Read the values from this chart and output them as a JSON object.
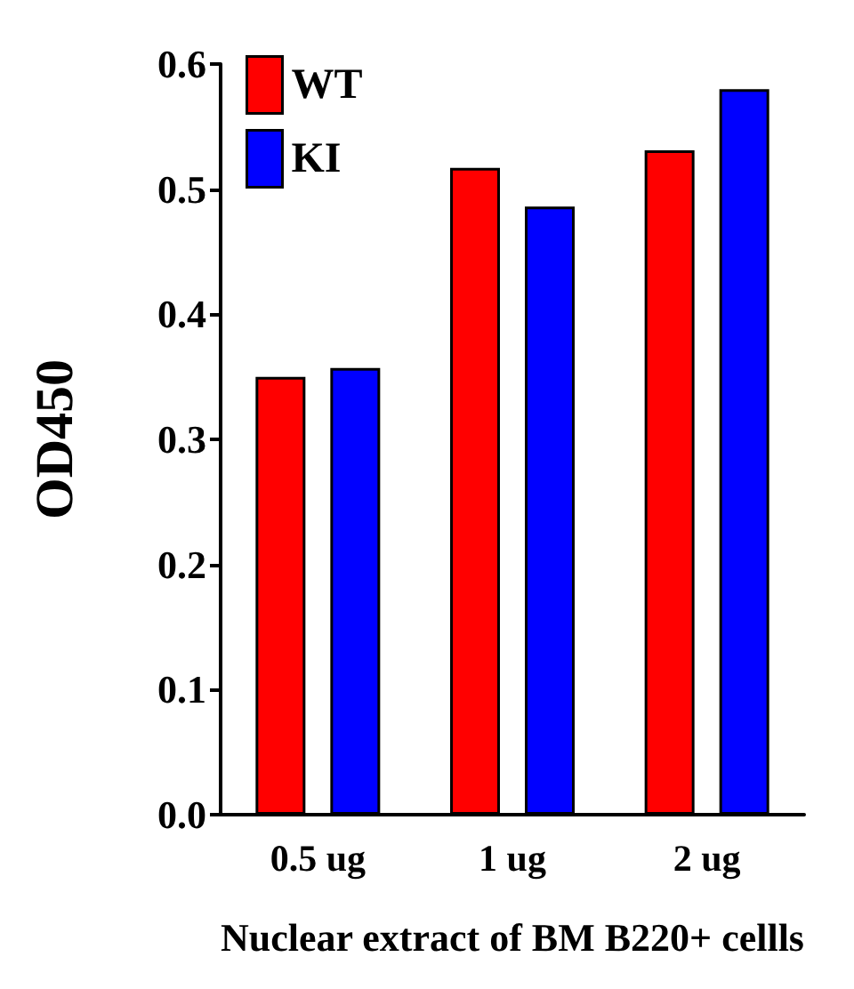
{
  "chart_data": {
    "type": "bar",
    "xlabel": "Nuclear extract of BM B220+ cellls",
    "ylabel": "OD450",
    "categories": [
      "0.5 ug",
      "1 ug",
      "2 ug"
    ],
    "series": [
      {
        "name": "WT",
        "color": "#ff0000",
        "values": [
          0.35,
          0.517,
          0.531
        ]
      },
      {
        "name": "KI",
        "color": "#0000ff",
        "values": [
          0.357,
          0.486,
          0.58
        ]
      }
    ],
    "ylim": [
      0,
      0.6
    ],
    "yticks": [
      {
        "value": 0,
        "label": "0.0"
      },
      0.1,
      0.2,
      0.3,
      0.4,
      0.5,
      0.6
    ],
    "grid": false,
    "legend": "top left"
  }
}
